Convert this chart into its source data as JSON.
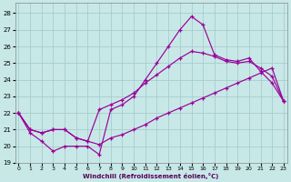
{
  "xlabel": "Windchill (Refroidissement éolien,°C)",
  "bg_color": "#c8e8e8",
  "line_color": "#990099",
  "grid_color": "#a8cccc",
  "xlim_min": -0.3,
  "xlim_max": 23.3,
  "ylim_min": 19.0,
  "ylim_max": 28.6,
  "yticks": [
    19,
    20,
    21,
    22,
    23,
    24,
    25,
    26,
    27,
    28
  ],
  "xticks": [
    0,
    1,
    2,
    3,
    4,
    5,
    6,
    7,
    8,
    9,
    10,
    11,
    12,
    13,
    14,
    15,
    16,
    17,
    18,
    19,
    20,
    21,
    22,
    23
  ],
  "series1_x": [
    0,
    1,
    2,
    3,
    4,
    5,
    6,
    7,
    8,
    9,
    10,
    11,
    12,
    13,
    14,
    15,
    16,
    17,
    18,
    19,
    20,
    21,
    22,
    23
  ],
  "series1_y": [
    22.0,
    20.8,
    20.3,
    19.7,
    20.0,
    20.0,
    20.0,
    19.5,
    22.2,
    22.5,
    23.0,
    24.0,
    25.0,
    26.0,
    27.0,
    27.8,
    27.3,
    25.5,
    25.2,
    25.1,
    25.3,
    24.5,
    23.8,
    22.7
  ],
  "series2_x": [
    0,
    1,
    2,
    3,
    4,
    5,
    6,
    7,
    8,
    9,
    10,
    11,
    12,
    13,
    14,
    15,
    16,
    17,
    18,
    19,
    20,
    21,
    22,
    23
  ],
  "series2_y": [
    22.0,
    21.0,
    20.8,
    21.0,
    21.0,
    20.5,
    20.3,
    22.2,
    22.5,
    22.8,
    23.2,
    23.8,
    24.3,
    24.8,
    25.3,
    25.7,
    25.6,
    25.4,
    25.1,
    25.0,
    25.1,
    24.7,
    24.2,
    22.7
  ],
  "series3_x": [
    0,
    1,
    2,
    3,
    4,
    5,
    6,
    7,
    8,
    9,
    10,
    11,
    12,
    13,
    14,
    15,
    16,
    17,
    18,
    19,
    20,
    21,
    22,
    23
  ],
  "series3_y": [
    22.0,
    21.0,
    20.8,
    21.0,
    21.0,
    20.5,
    20.3,
    20.1,
    20.5,
    20.7,
    21.0,
    21.3,
    21.7,
    22.0,
    22.3,
    22.6,
    22.9,
    23.2,
    23.5,
    23.8,
    24.1,
    24.4,
    24.7,
    22.7
  ]
}
